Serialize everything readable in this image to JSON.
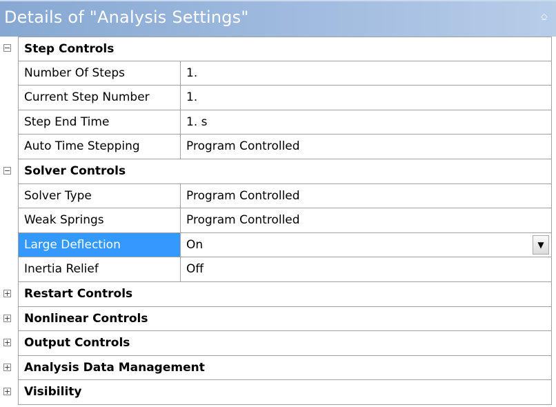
{
  "header": {
    "title": "Details of \"Analysis Settings\"",
    "pin_icon": "pin-icon"
  },
  "colors": {
    "header": "#a3bde0",
    "selection": "#3399ff"
  },
  "groups": [
    {
      "label": "Step Controls",
      "expanded": true,
      "rows": [
        {
          "name": "Number Of Steps",
          "value": "1."
        },
        {
          "name": "Current Step Number",
          "value": "1."
        },
        {
          "name": "Step End Time",
          "value": "1. s"
        },
        {
          "name": "Auto Time Stepping",
          "value": "Program Controlled"
        }
      ]
    },
    {
      "label": "Solver Controls",
      "expanded": true,
      "rows": [
        {
          "name": "Solver Type",
          "value": "Program Controlled"
        },
        {
          "name": "Weak Springs",
          "value": "Program Controlled"
        },
        {
          "name": "Large Deflection",
          "value": "On",
          "selected": true
        },
        {
          "name": "Inertia Relief",
          "value": "Off"
        }
      ]
    },
    {
      "label": "Restart Controls",
      "expanded": false,
      "rows": []
    },
    {
      "label": "Nonlinear Controls",
      "expanded": false,
      "rows": []
    },
    {
      "label": "Output Controls",
      "expanded": false,
      "rows": []
    },
    {
      "label": "Analysis Data Management",
      "expanded": false,
      "rows": []
    },
    {
      "label": "Visibility",
      "expanded": false,
      "rows": []
    }
  ]
}
